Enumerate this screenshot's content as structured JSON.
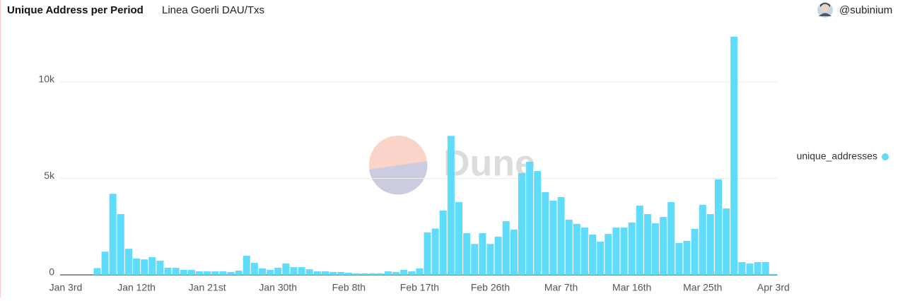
{
  "header": {
    "title": "Unique Address per Period",
    "subtitle": "Linea Goerli DAU/Txs",
    "author": "@subinium"
  },
  "watermark": "Dune",
  "chart_data": {
    "type": "bar",
    "series": [
      {
        "name": "unique_addresses",
        "color": "#5fdcfb",
        "values": [
          0,
          0,
          0,
          0,
          350,
          1200,
          4200,
          3150,
          1350,
          850,
          800,
          920,
          730,
          370,
          370,
          260,
          260,
          180,
          180,
          180,
          180,
          150,
          220,
          990,
          620,
          330,
          260,
          370,
          590,
          400,
          400,
          290,
          180,
          180,
          150,
          150,
          110,
          80,
          80,
          80,
          80,
          180,
          150,
          260,
          180,
          330,
          2200,
          2400,
          3330,
          7200,
          3770,
          2160,
          1600,
          2160,
          1600,
          1980,
          2780,
          2350,
          5270,
          5860,
          5380,
          4290,
          3850,
          4030,
          2860,
          2640,
          2450,
          2090,
          1720,
          2120,
          2450,
          2450,
          2710,
          3590,
          3150,
          2670,
          3000,
          3770,
          1650,
          1760,
          2380,
          3630,
          3150,
          4950,
          3440,
          12340,
          660,
          590,
          660,
          660,
          50
        ]
      }
    ],
    "categories": [
      "Jan 3rd",
      null,
      null,
      null,
      null,
      null,
      null,
      null,
      null,
      "Jan 12th",
      null,
      null,
      null,
      null,
      null,
      null,
      null,
      null,
      "Jan 21st",
      null,
      null,
      null,
      null,
      null,
      null,
      null,
      null,
      "Jan 30th",
      null,
      null,
      null,
      null,
      null,
      null,
      null,
      null,
      "Feb 8th",
      null,
      null,
      null,
      null,
      null,
      null,
      null,
      null,
      "Feb 17th",
      null,
      null,
      null,
      null,
      null,
      null,
      null,
      null,
      "Feb 26th",
      null,
      null,
      null,
      null,
      null,
      null,
      null,
      null,
      "Mar 7th",
      null,
      null,
      null,
      null,
      null,
      null,
      null,
      null,
      "Mar 16th",
      null,
      null,
      null,
      null,
      null,
      null,
      null,
      null,
      "Mar 25th",
      null,
      null,
      null,
      null,
      null,
      null,
      null,
      null,
      "Apr 3rd"
    ],
    "ylim": [
      0,
      12500
    ],
    "yticks": [
      0,
      {
        "value": 5000,
        "label": "5k"
      },
      {
        "value": 10000,
        "label": "10k"
      }
    ],
    "grid": true,
    "legend": "right"
  }
}
